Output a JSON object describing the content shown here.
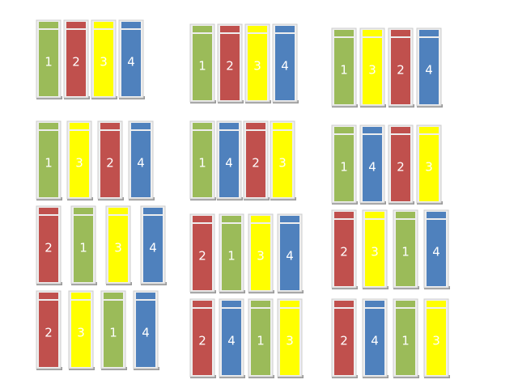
{
  "colors": {
    "1": "#9bbb59",
    "2": "#c0504d",
    "3": "#ffff00",
    "4": "#4f81bd"
  },
  "groups": [
    {
      "items": [
        "1",
        "2",
        "3",
        "4"
      ]
    },
    {
      "items": [
        "1",
        "2",
        "3",
        "4"
      ]
    },
    {
      "items": [
        "1",
        "3",
        "2",
        "4"
      ]
    },
    {
      "items": [
        "1",
        "3",
        "2",
        "4"
      ]
    },
    {
      "items": [
        "1",
        "4",
        "2",
        "3"
      ]
    },
    {
      "items": [
        "1",
        "4",
        "2",
        "3"
      ]
    },
    {
      "items": [
        "2",
        "1",
        "3",
        "4"
      ]
    },
    {
      "items": [
        "2",
        "1",
        "3",
        "4"
      ]
    },
    {
      "items": [
        "2",
        "3",
        "1",
        "4"
      ]
    },
    {
      "items": [
        "2",
        "3",
        "1",
        "4"
      ]
    },
    {
      "items": [
        "2",
        "4",
        "1",
        "3"
      ]
    },
    {
      "items": [
        "2",
        "4",
        "1",
        "3"
      ]
    }
  ]
}
